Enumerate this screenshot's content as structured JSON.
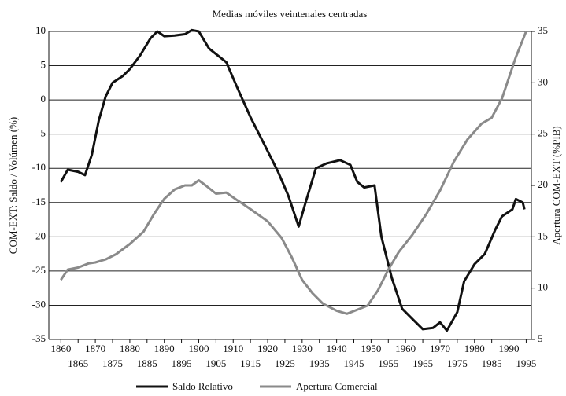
{
  "chart_data": {
    "type": "line",
    "title": "Medias móviles veintenales centradas",
    "y_label": "COM-EXT: Saldo / Volúmen (%)",
    "y2_label": "Apertura COM-EXT (%PIB)",
    "xlim": [
      1856.5,
      1996.5
    ],
    "xticks": [
      1860,
      1865,
      1870,
      1875,
      1880,
      1885,
      1890,
      1895,
      1900,
      1905,
      1910,
      1915,
      1920,
      1925,
      1930,
      1935,
      1940,
      1945,
      1950,
      1955,
      1960,
      1965,
      1970,
      1975,
      1980,
      1985,
      1990,
      1995
    ],
    "ylim": [
      -35,
      10
    ],
    "yticks": [
      10,
      5,
      0,
      -5,
      -10,
      -15,
      -20,
      -25,
      -30,
      -35
    ],
    "y2lim": [
      5,
      35
    ],
    "y2ticks": [
      35,
      30,
      25,
      20,
      15,
      10,
      5
    ],
    "grid": true,
    "legend": "bottom",
    "series": [
      {
        "name": "Saldo Relativo",
        "color": "#111111",
        "axis": "y",
        "x": [
          1860,
          1862,
          1865,
          1867,
          1869,
          1871,
          1873,
          1875,
          1878,
          1880,
          1883,
          1886,
          1888,
          1890,
          1893,
          1896,
          1898,
          1900,
          1903,
          1906,
          1908,
          1911,
          1915,
          1919,
          1923,
          1926,
          1929,
          1931,
          1934,
          1937,
          1941,
          1944,
          1946,
          1948,
          1951,
          1953,
          1956,
          1959,
          1962,
          1965,
          1968,
          1970,
          1972,
          1975,
          1977,
          1980,
          1983,
          1986,
          1988,
          1991,
          1992,
          1994,
          1994.5
        ],
        "values": [
          -12,
          -10.2,
          -10.5,
          -11,
          -8,
          -3,
          0.5,
          2.5,
          3.5,
          4.5,
          6.5,
          9,
          10,
          9.3,
          9.4,
          9.6,
          10.2,
          10,
          7.5,
          6.3,
          5.5,
          2,
          -2.5,
          -6.5,
          -10.5,
          -14,
          -18.5,
          -15,
          -10,
          -9.3,
          -8.8,
          -9.5,
          -12,
          -12.8,
          -12.5,
          -20,
          -26,
          -30.5,
          -32,
          -33.5,
          -33.3,
          -32.5,
          -33.7,
          -31,
          -26.5,
          -24,
          -22.5,
          -19,
          -17,
          -16,
          -14.5,
          -15,
          -16
        ]
      },
      {
        "name": "Apertura Comercial",
        "color": "#8a8a8a",
        "axis": "y2",
        "x": [
          1860,
          1862,
          1865,
          1868,
          1870,
          1873,
          1876,
          1880,
          1884,
          1887,
          1890,
          1893,
          1896,
          1898,
          1900,
          1902,
          1905,
          1908,
          1911,
          1915,
          1920,
          1924,
          1927,
          1930,
          1933,
          1936,
          1940,
          1943,
          1946,
          1949,
          1952,
          1955,
          1958,
          1962,
          1966,
          1970,
          1974,
          1978,
          1982,
          1985,
          1988,
          1990,
          1992,
          1995
        ],
        "values": [
          10.8,
          11.8,
          12,
          12.4,
          12.5,
          12.8,
          13.3,
          14.3,
          15.5,
          17.2,
          18.7,
          19.6,
          20,
          20,
          20.5,
          20,
          19.2,
          19.3,
          18.6,
          17.7,
          16.5,
          14.9,
          13,
          10.8,
          9.5,
          8.5,
          7.8,
          7.5,
          7.9,
          8.3,
          9.8,
          11.8,
          13.5,
          15.2,
          17.2,
          19.5,
          22.3,
          24.5,
          26,
          26.6,
          28.5,
          30.5,
          32.5,
          35
        ]
      }
    ]
  }
}
